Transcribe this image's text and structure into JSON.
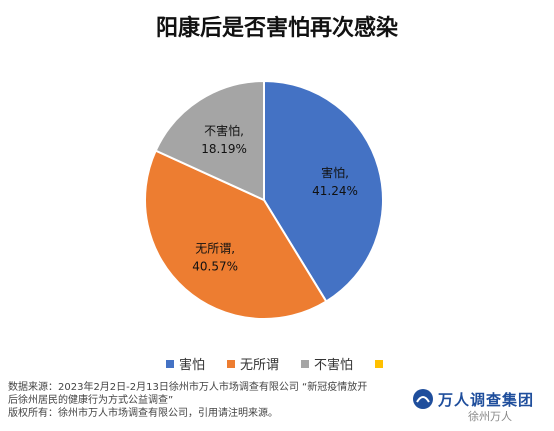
{
  "chart_data": {
    "type": "pie",
    "title": "阳康后是否害怕再次感染",
    "slices": [
      {
        "label": "害怕",
        "value": 41.24,
        "display": "41.24%",
        "color": "#4472C4"
      },
      {
        "label": "无所谓",
        "value": 40.57,
        "display": "40.57%",
        "color": "#ED7D31"
      },
      {
        "label": "不害怕",
        "value": 18.19,
        "display": "18.19%",
        "color": "#A5A5A5"
      }
    ],
    "legend": [
      {
        "label": "害怕",
        "color": "#4472C4"
      },
      {
        "label": "无所谓",
        "color": "#ED7D31"
      },
      {
        "label": "不害怕",
        "color": "#A5A5A5"
      },
      {
        "label": "",
        "color": "#FFC000"
      }
    ],
    "legend_position": "bottom"
  },
  "footer": {
    "source_line1": "数据来源：2023年2月2日-2月13日徐州市万人市场调查有限公司 “新冠疫情放开",
    "source_line2": "后徐州居民的健康行为方式公益调查”",
    "source_line3": "版权所有：徐州市万人市场调查有限公司，引用请注明来源。",
    "logo_text": "万人调查集团",
    "watermark": "徐州万人"
  }
}
